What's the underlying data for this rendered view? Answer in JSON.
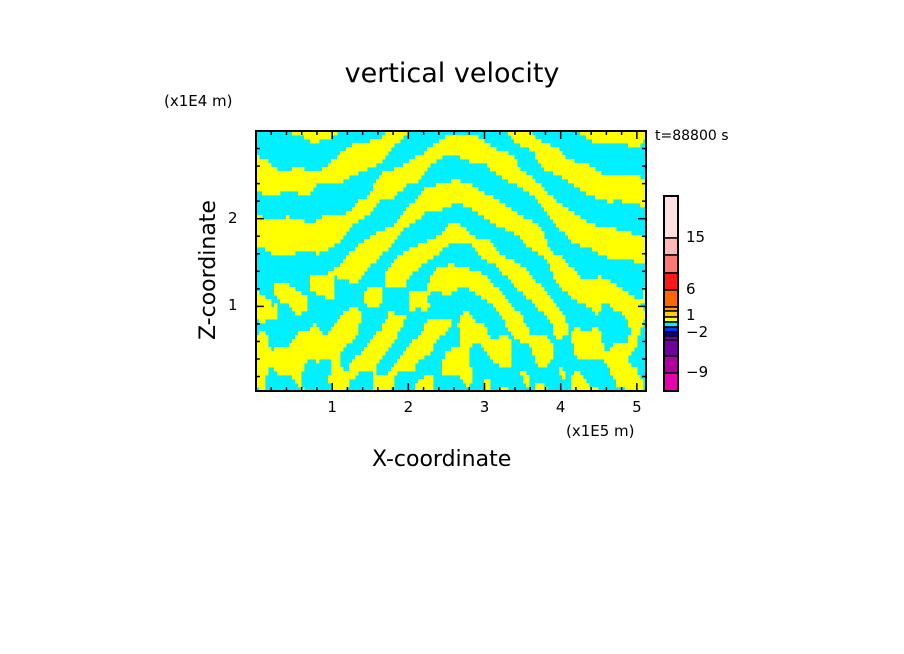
{
  "chart_data": {
    "type": "heatmap",
    "title": "vertical velocity",
    "xlabel": "X-coordinate",
    "ylabel": "Z-coordinate",
    "x_unit": "(x1E5 m)",
    "y_unit": "(x1E4 m)",
    "annotation": "t=88800 s",
    "xlim": [
      0,
      5.12
    ],
    "ylim": [
      0.035,
      3.0
    ],
    "x_ticks": [
      "1",
      "2",
      "3",
      "4",
      "5"
    ],
    "x_tick_values": [
      1,
      2,
      3,
      4,
      5
    ],
    "y_ticks": [
      "1",
      "2"
    ],
    "y_tick_values": [
      1,
      2
    ],
    "dominant_colors": [
      "#ffff00",
      "#00f0ff"
    ],
    "colorbar": {
      "labels": [
        "15",
        "6",
        "1",
        "-2",
        "-9"
      ],
      "label_positions_level_index": [
        1,
        4,
        7,
        10,
        13
      ],
      "colors": [
        "#ffe0e0",
        "#ffb8b8",
        "#ff7878",
        "#ff1a1a",
        "#ff6600",
        "#ffa000",
        "#ffd000",
        "#ffff00",
        "#00f0ff",
        "#0033ff",
        "#0000a0",
        "#7000a0",
        "#b000a0",
        "#e800b0"
      ]
    }
  }
}
